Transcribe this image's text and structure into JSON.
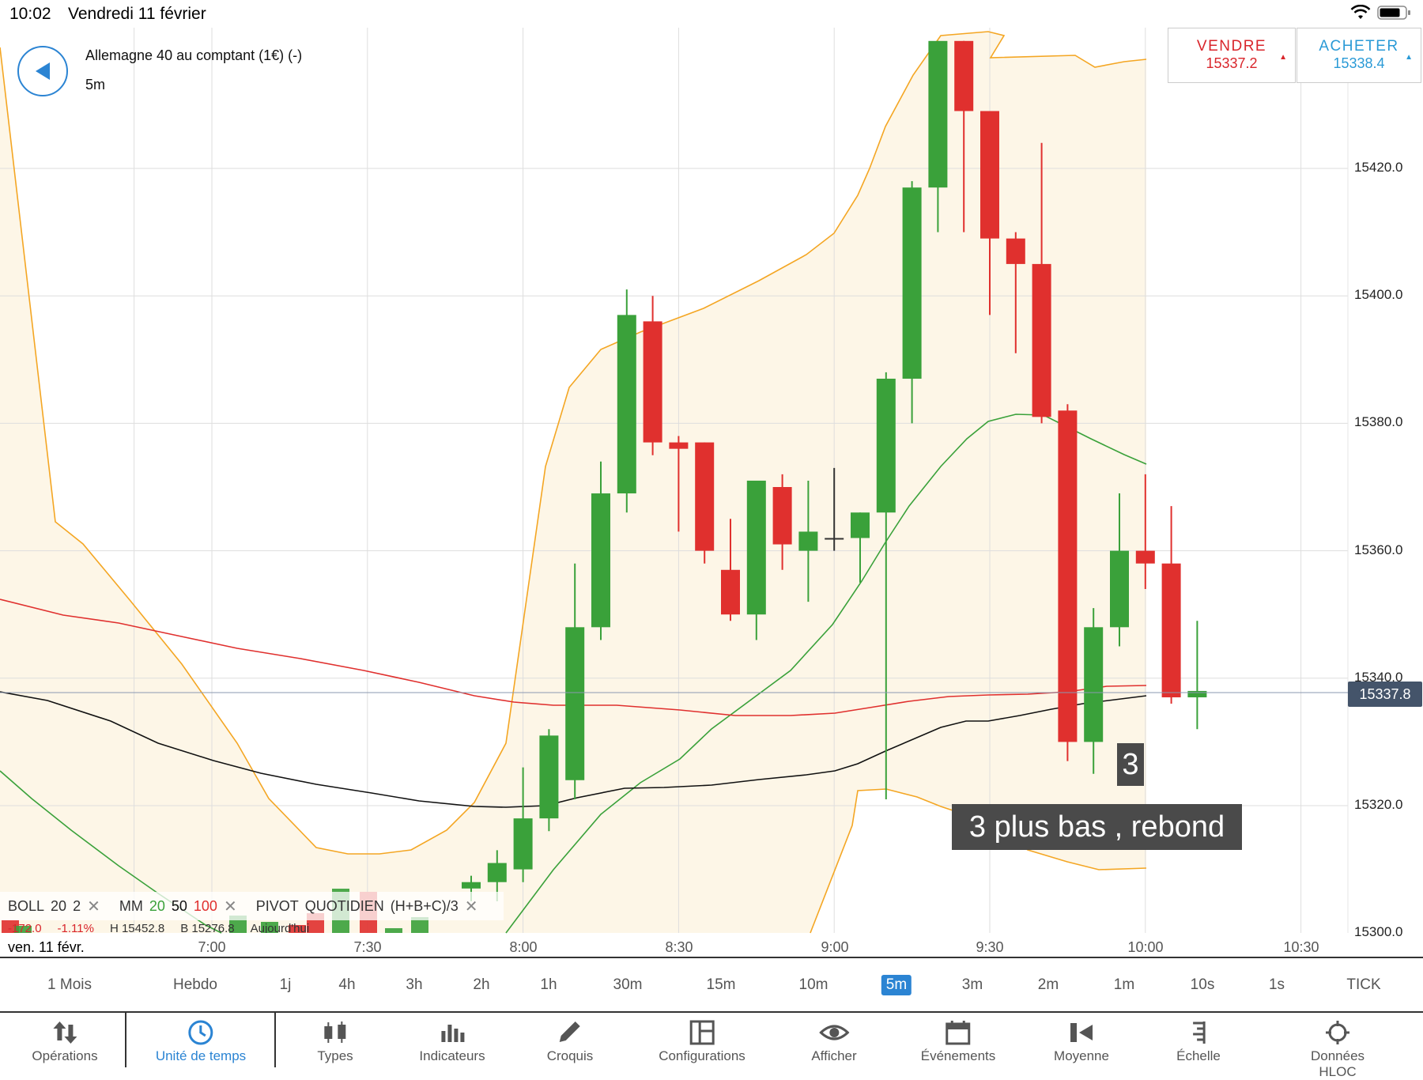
{
  "status": {
    "time": "10:02",
    "date": "Vendredi 11 février"
  },
  "header": {
    "instrument": "Allemagne 40 au comptant (1€) (-)",
    "timeframe": "5m"
  },
  "quotes": {
    "sell": {
      "label": "VENDRE",
      "value": "15337.2",
      "color": "#d9252b"
    },
    "buy": {
      "label": "ACHETER",
      "value": "15338.4",
      "color": "#2a9ad6"
    }
  },
  "current_price": "15337.8",
  "annotations": {
    "number": "3",
    "text": "3 plus bas , rebond"
  },
  "legend": {
    "boll": "BOLL",
    "boll_p1": "20",
    "boll_p2": "2",
    "mm": "MM",
    "mm_p1": "20",
    "mm_p2": "50",
    "mm_p3": "100",
    "pivot": "PIVOT",
    "pivot_p1": "QUOTIDIEN",
    "pivot_p2": "(H+B+C)/3",
    "row2": [
      "-172.0",
      "-1.11%",
      "H 15452.8",
      "B 15276.8",
      "Aujourd'hui"
    ]
  },
  "x_axis": {
    "date": "ven. 11 févr.",
    "ticks": [
      "7:00",
      "7:30",
      "8:00",
      "8:30",
      "9:00",
      "9:30",
      "10:00",
      "10:30"
    ]
  },
  "y_axis": {
    "ticks": [
      "15420.0",
      "15400.0",
      "15380.0",
      "15360.0",
      "15340.0",
      "15320.0",
      "15300.0"
    ]
  },
  "timeframes": [
    "1 Mois",
    "Hebdo",
    "1j",
    "4h",
    "3h",
    "2h",
    "1h",
    "30m",
    "15m",
    "10m",
    "5m",
    "3m",
    "2m",
    "1m",
    "10s",
    "1s",
    "TICK"
  ],
  "active_timeframe": "5m",
  "toolbar": [
    "Opérations",
    "Unité de temps",
    "Types",
    "Indicateurs",
    "Croquis",
    "Configurations",
    "Afficher",
    "Événements",
    "Moyenne",
    "Échelle",
    "Données HLOC"
  ],
  "active_tool": "Unité de temps",
  "chart_data": {
    "type": "candlestick",
    "candles": [
      {
        "t": "7:50",
        "o": 15307,
        "h": 15309,
        "l": 15305,
        "c": 15308
      },
      {
        "t": "7:55",
        "o": 15308,
        "h": 15313,
        "l": 15305,
        "c": 15311
      },
      {
        "t": "8:00",
        "o": 15310,
        "h": 15326,
        "l": 15308,
        "c": 15318
      },
      {
        "t": "8:05",
        "o": 15318,
        "h": 15332,
        "l": 15316,
        "c": 15331
      },
      {
        "t": "8:10",
        "o": 15324,
        "h": 15358,
        "l": 15321,
        "c": 15348
      },
      {
        "t": "8:15",
        "o": 15348,
        "h": 15374,
        "l": 15346,
        "c": 15369
      },
      {
        "t": "8:20",
        "o": 15369,
        "h": 15401,
        "l": 15366,
        "c": 15397
      },
      {
        "t": "8:25",
        "o": 15396,
        "h": 15400,
        "l": 15375,
        "c": 15377
      },
      {
        "t": "8:30",
        "o": 15377,
        "h": 15378,
        "l": 15363,
        "c": 15376
      },
      {
        "t": "8:35",
        "o": 15377,
        "h": 15377,
        "l": 15358,
        "c": 15360
      },
      {
        "t": "8:40",
        "o": 15357,
        "h": 15365,
        "l": 15349,
        "c": 15350
      },
      {
        "t": "8:45",
        "o": 15350,
        "h": 15371,
        "l": 15346,
        "c": 15371
      },
      {
        "t": "8:50",
        "o": 15370,
        "h": 15372,
        "l": 15357,
        "c": 15361
      },
      {
        "t": "8:55",
        "o": 15360,
        "h": 15371,
        "l": 15352,
        "c": 15363
      },
      {
        "t": "9:00",
        "o": 15362,
        "h": 15373,
        "l": 15360,
        "c": 15362
      },
      {
        "t": "9:05",
        "o": 15362,
        "h": 15366,
        "l": 15355,
        "c": 15366
      },
      {
        "t": "9:10",
        "o": 15366,
        "h": 15388,
        "l": 15321,
        "c": 15387
      },
      {
        "t": "9:15",
        "o": 15387,
        "h": 15418,
        "l": 15380,
        "c": 15417
      },
      {
        "t": "9:20",
        "o": 15417,
        "h": 15440,
        "l": 15410,
        "c": 15440
      },
      {
        "t": "9:25",
        "o": 15440,
        "h": 15440,
        "l": 15410,
        "c": 15429
      },
      {
        "t": "9:30",
        "o": 15429,
        "h": 15429,
        "l": 15397,
        "c": 15409
      },
      {
        "t": "9:35",
        "o": 15409,
        "h": 15410,
        "l": 15391,
        "c": 15405
      },
      {
        "t": "9:40",
        "o": 15405,
        "h": 15424,
        "l": 15380,
        "c": 15381
      },
      {
        "t": "9:45",
        "o": 15382,
        "h": 15383,
        "l": 15327,
        "c": 15330
      },
      {
        "t": "9:50",
        "o": 15330,
        "h": 15351,
        "l": 15325,
        "c": 15348
      },
      {
        "t": "9:55",
        "o": 15348,
        "h": 15369,
        "l": 15345,
        "c": 15360
      },
      {
        "t": "10:00",
        "o": 15360,
        "h": 15372,
        "l": 15354,
        "c": 15358
      },
      {
        "t": "10:05",
        "o": 15358,
        "h": 15367,
        "l": 15336,
        "c": 15337
      },
      {
        "t": "10:10",
        "o": 15337,
        "h": 15349,
        "l": 15332,
        "c": 15338
      }
    ],
    "series": [
      {
        "name": "BOLL upper",
        "color": "#f4a623"
      },
      {
        "name": "BOLL lower",
        "color": "#f4a623"
      },
      {
        "name": "MM 20",
        "color": "#3aa13a"
      },
      {
        "name": "MM 50",
        "color": "#111111"
      },
      {
        "name": "MM 100",
        "color": "#e0302e"
      }
    ],
    "ylim": [
      15298,
      15446
    ]
  }
}
